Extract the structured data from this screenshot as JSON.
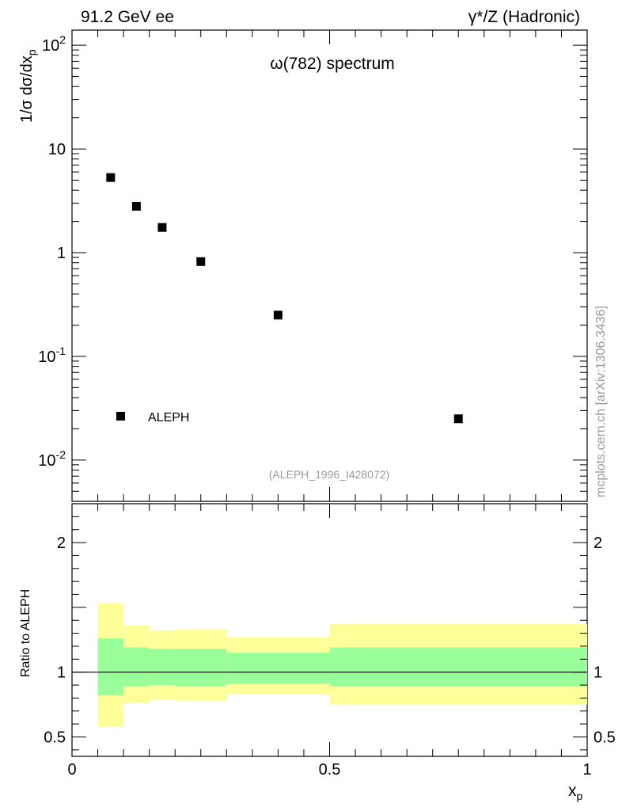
{
  "header": {
    "left": "91.2 GeV ee",
    "right": "γ*/Z (Hadronic)"
  },
  "side_label": "mcplots.cern.ch [arXiv:1306.3436]",
  "chart_data": [
    {
      "type": "scatter",
      "panel": "main",
      "title": "ω(782) spectrum",
      "xlabel": "x_p",
      "ylabel": "1/σ dσ/dx_p",
      "yscale": "log",
      "xlim": [
        0,
        1
      ],
      "ylim": [
        0.004,
        140
      ],
      "y_ticks": [
        {
          "value": 0.01,
          "label": "10^-2"
        },
        {
          "value": 0.1,
          "label": "10^-1"
        },
        {
          "value": 1,
          "label": "1"
        },
        {
          "value": 10,
          "label": "10"
        },
        {
          "value": 100,
          "label": "10^2"
        }
      ],
      "series": [
        {
          "name": "ALEPH",
          "x": [
            0.075,
            0.125,
            0.175,
            0.25,
            0.4,
            0.75
          ],
          "y": [
            5.3,
            2.8,
            1.75,
            0.82,
            0.25,
            0.025
          ]
        }
      ],
      "legend": {
        "position": "bottom-left",
        "entries": [
          "ALEPH"
        ]
      },
      "annotation": "(ALEPH_1996_I428072)"
    },
    {
      "type": "area",
      "panel": "ratio",
      "ylabel": "Ratio to ALEPH",
      "xlabel": "x_p",
      "xlim": [
        0,
        1
      ],
      "ylim": [
        0.35,
        2.3
      ],
      "x_ticks": [
        {
          "value": 0,
          "label": "0"
        },
        {
          "value": 0.5,
          "label": "0.5"
        },
        {
          "value": 1,
          "label": "1"
        }
      ],
      "y_ticks": [
        {
          "value": 0.5,
          "label": "0.5"
        },
        {
          "value": 1,
          "label": "1"
        },
        {
          "value": 2,
          "label": "2"
        }
      ],
      "reference_line": 1,
      "bins": [
        {
          "x_low": 0.05,
          "x_high": 0.1,
          "stat_low": 0.82,
          "stat_high": 1.26,
          "total_low": 0.58,
          "total_high": 1.53
        },
        {
          "x_low": 0.1,
          "x_high": 0.15,
          "stat_low": 0.89,
          "stat_high": 1.19,
          "total_low": 0.76,
          "total_high": 1.36
        },
        {
          "x_low": 0.15,
          "x_high": 0.2,
          "stat_low": 0.9,
          "stat_high": 1.18,
          "total_low": 0.79,
          "total_high": 1.32
        },
        {
          "x_low": 0.2,
          "x_high": 0.3,
          "stat_low": 0.89,
          "stat_high": 1.18,
          "total_low": 0.78,
          "total_high": 1.33
        },
        {
          "x_low": 0.3,
          "x_high": 0.5,
          "stat_low": 0.91,
          "stat_high": 1.15,
          "total_low": 0.83,
          "total_high": 1.27
        },
        {
          "x_low": 0.5,
          "x_high": 1.0,
          "stat_low": 0.89,
          "stat_high": 1.19,
          "total_low": 0.75,
          "total_high": 1.37
        }
      ],
      "colors": {
        "stat": "#99ff99",
        "total": "#ffff99"
      }
    }
  ]
}
